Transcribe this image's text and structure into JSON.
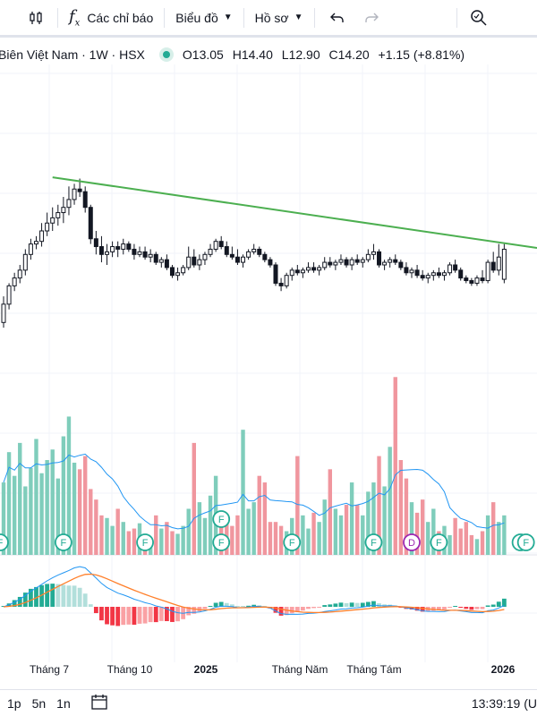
{
  "toolbar": {
    "indicators_label": "Các chỉ báo",
    "chart_type_label": "Biểu đồ",
    "profile_label": "Hồ sơ"
  },
  "legend": {
    "symbol_text": "Biên Việt Nam · 1W · HSX",
    "open": "O13.05",
    "high": "H14.40",
    "low": "L12.90",
    "close": "C14.20",
    "change": "+1.15 (+8.81%)"
  },
  "colors": {
    "up": "#22ab94",
    "down": "#131722",
    "vol_up": "#7fcdbb",
    "vol_down": "#f0969e",
    "trendline": "#4caf50",
    "vol_ma": "#2196f3",
    "macd_line": "#2196f3",
    "signal_line": "#ff7f2a",
    "hist_up_strong": "#22ab94",
    "hist_up_weak": "#b2dfdb",
    "hist_down_strong": "#f23645",
    "hist_down_weak": "#faa1a4"
  },
  "chart_data": {
    "type": "candlestick",
    "interval": "1W",
    "candles": [
      [
        11.4,
        12.4,
        11.2,
        12.1
      ],
      [
        12.1,
        12.9,
        11.9,
        12.8
      ],
      [
        12.8,
        13.3,
        12.6,
        13.1
      ],
      [
        13.1,
        13.6,
        12.9,
        13.4
      ],
      [
        13.4,
        14.2,
        13.2,
        14.0
      ],
      [
        14.0,
        14.6,
        13.8,
        14.4
      ],
      [
        14.4,
        14.7,
        14.2,
        14.5
      ],
      [
        14.5,
        15.2,
        14.3,
        14.9
      ],
      [
        14.9,
        15.6,
        14.7,
        15.2
      ],
      [
        15.2,
        15.8,
        14.9,
        15.4
      ],
      [
        15.4,
        15.9,
        15.1,
        15.6
      ],
      [
        15.6,
        16.2,
        15.2,
        15.8
      ],
      [
        15.8,
        16.6,
        15.5,
        16.1
      ],
      [
        16.1,
        16.7,
        15.9,
        16.5
      ],
      [
        16.5,
        16.9,
        16.2,
        16.4
      ],
      [
        16.4,
        16.6,
        15.6,
        15.8
      ],
      [
        15.8,
        15.9,
        14.4,
        14.6
      ],
      [
        14.6,
        14.9,
        14.0,
        14.3
      ],
      [
        14.3,
        14.7,
        13.7,
        14.0
      ],
      [
        14.0,
        14.4,
        13.6,
        14.1
      ],
      [
        14.1,
        14.5,
        13.9,
        14.3
      ],
      [
        14.3,
        14.5,
        13.9,
        14.2
      ],
      [
        14.2,
        14.6,
        14.0,
        14.4
      ],
      [
        14.4,
        14.5,
        14.1,
        14.2
      ],
      [
        14.2,
        14.4,
        13.8,
        14.0
      ],
      [
        14.0,
        14.3,
        13.9,
        14.1
      ],
      [
        14.1,
        14.3,
        13.8,
        13.9
      ],
      [
        13.9,
        14.2,
        13.7,
        14.0
      ],
      [
        14.0,
        14.1,
        13.6,
        13.7
      ],
      [
        13.7,
        13.9,
        13.5,
        13.8
      ],
      [
        13.8,
        14.0,
        13.4,
        13.5
      ],
      [
        13.5,
        13.6,
        13.1,
        13.2
      ],
      [
        13.2,
        13.5,
        13.0,
        13.3
      ],
      [
        13.3,
        13.6,
        13.2,
        13.5
      ],
      [
        13.5,
        14.3,
        13.4,
        13.9
      ],
      [
        13.9,
        14.2,
        13.5,
        13.6
      ],
      [
        13.6,
        14.0,
        13.4,
        13.8
      ],
      [
        13.8,
        14.1,
        13.6,
        14.0
      ],
      [
        14.0,
        14.4,
        13.9,
        14.2
      ],
      [
        14.2,
        14.6,
        14.1,
        14.5
      ],
      [
        14.5,
        14.7,
        14.2,
        14.3
      ],
      [
        14.3,
        14.5,
        13.9,
        14.0
      ],
      [
        14.0,
        14.3,
        13.8,
        13.9
      ],
      [
        13.9,
        14.2,
        13.6,
        13.7
      ],
      [
        13.7,
        14.0,
        13.5,
        13.9
      ],
      [
        13.9,
        14.2,
        13.8,
        14.1
      ],
      [
        14.1,
        14.4,
        14.0,
        14.2
      ],
      [
        14.2,
        14.3,
        13.9,
        14.0
      ],
      [
        14.0,
        14.1,
        13.7,
        13.8
      ],
      [
        13.8,
        13.9,
        13.5,
        13.6
      ],
      [
        13.6,
        13.7,
        12.8,
        12.9
      ],
      [
        12.9,
        13.1,
        12.6,
        12.8
      ],
      [
        12.8,
        13.3,
        12.7,
        13.2
      ],
      [
        13.2,
        13.5,
        13.0,
        13.4
      ],
      [
        13.4,
        13.6,
        13.2,
        13.3
      ],
      [
        13.3,
        13.5,
        13.1,
        13.4
      ],
      [
        13.4,
        13.7,
        13.3,
        13.5
      ],
      [
        13.5,
        13.7,
        13.3,
        13.4
      ],
      [
        13.4,
        13.6,
        13.2,
        13.5
      ],
      [
        13.5,
        13.9,
        13.4,
        13.7
      ],
      [
        13.7,
        13.9,
        13.5,
        13.6
      ],
      [
        13.6,
        13.8,
        13.4,
        13.7
      ],
      [
        13.7,
        14.0,
        13.6,
        13.8
      ],
      [
        13.8,
        13.9,
        13.5,
        13.6
      ],
      [
        13.6,
        13.9,
        13.4,
        13.8
      ],
      [
        13.8,
        14.0,
        13.6,
        13.7
      ],
      [
        13.7,
        13.9,
        13.5,
        13.8
      ],
      [
        13.8,
        14.2,
        13.7,
        14.0
      ],
      [
        14.0,
        14.4,
        13.8,
        14.1
      ],
      [
        14.1,
        14.2,
        13.5,
        13.6
      ],
      [
        13.6,
        13.8,
        13.4,
        13.7
      ],
      [
        13.7,
        13.9,
        13.5,
        13.8
      ],
      [
        13.8,
        14.0,
        13.6,
        13.7
      ],
      [
        13.7,
        13.8,
        13.4,
        13.5
      ],
      [
        13.5,
        13.7,
        13.2,
        13.3
      ],
      [
        13.3,
        13.5,
        13.1,
        13.4
      ],
      [
        13.4,
        13.6,
        13.1,
        13.2
      ],
      [
        13.2,
        13.4,
        13.0,
        13.1
      ],
      [
        13.1,
        13.3,
        12.9,
        13.2
      ],
      [
        13.2,
        13.4,
        13.0,
        13.3
      ],
      [
        13.3,
        13.5,
        13.1,
        13.2
      ],
      [
        13.2,
        13.4,
        13.0,
        13.3
      ],
      [
        13.3,
        13.7,
        13.2,
        13.6
      ],
      [
        13.6,
        13.8,
        13.3,
        13.4
      ],
      [
        13.4,
        13.5,
        13.0,
        13.1
      ],
      [
        13.1,
        13.2,
        12.9,
        13.0
      ],
      [
        13.0,
        13.1,
        12.8,
        12.9
      ],
      [
        12.9,
        13.2,
        12.8,
        13.1
      ],
      [
        13.1,
        13.4,
        12.9,
        13.0
      ],
      [
        13.0,
        13.8,
        12.9,
        13.7
      ],
      [
        13.7,
        14.1,
        13.3,
        13.4
      ],
      [
        13.4,
        14.4,
        13.2,
        13.9
      ],
      [
        13.05,
        14.4,
        12.9,
        14.2
      ]
    ],
    "volume_rel": [
      0.55,
      0.78,
      0.6,
      0.85,
      0.52,
      0.66,
      0.88,
      0.62,
      0.72,
      0.8,
      0.58,
      0.9,
      1.05,
      0.7,
      0.65,
      0.75,
      0.5,
      0.42,
      0.3,
      0.28,
      0.22,
      0.35,
      0.25,
      0.18,
      0.2,
      0.24,
      0.15,
      0.12,
      0.3,
      0.2,
      0.25,
      0.18,
      0.16,
      0.22,
      0.35,
      0.85,
      0.4,
      0.28,
      0.45,
      0.6,
      0.3,
      0.25,
      0.22,
      0.3,
      0.95,
      0.35,
      0.4,
      0.6,
      0.55,
      0.25,
      0.25,
      0.22,
      0.18,
      0.28,
      0.75,
      0.3,
      0.2,
      0.32,
      0.25,
      0.42,
      0.65,
      0.35,
      0.3,
      0.38,
      0.55,
      0.38,
      0.3,
      0.48,
      0.55,
      0.75,
      0.52,
      0.82,
      1.35,
      0.72,
      0.58,
      0.4,
      0.32,
      0.42,
      0.25,
      0.35,
      0.18,
      0.22,
      0.15,
      0.28,
      0.2,
      0.25,
      0.15,
      0.12,
      0.18,
      0.3,
      0.4,
      0.25,
      0.3
    ]
  },
  "markers": [
    "F",
    "F",
    "F",
    "F",
    "F",
    "F",
    "F",
    "D",
    "F",
    "F",
    "F"
  ],
  "time_axis": [
    "Tháng 7",
    "Tháng 10",
    "2025",
    "Tháng Năm",
    "Tháng Tám",
    "2026"
  ],
  "bottom_bar": {
    "ranges": [
      "1p",
      "5n",
      "1n"
    ],
    "clock": "13:39:19 (U"
  }
}
